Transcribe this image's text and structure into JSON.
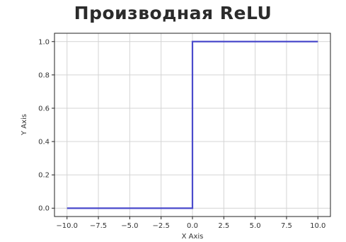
{
  "chart_data": {
    "type": "line",
    "title": "Производная ReLU",
    "xlabel": "X Axis",
    "ylabel": "Y Axis",
    "xlim": [
      -11,
      11
    ],
    "ylim": [
      -0.05,
      1.05
    ],
    "xticks": [
      -10.0,
      -7.5,
      -5.0,
      -2.5,
      0.0,
      2.5,
      5.0,
      7.5,
      10.0
    ],
    "xtick_labels": [
      "−10.0",
      "−7.5",
      "−5.0",
      "−2.5",
      "0.0",
      "2.5",
      "5.0",
      "7.5",
      "10.0"
    ],
    "yticks": [
      0.0,
      0.2,
      0.4,
      0.6,
      0.8,
      1.0
    ],
    "ytick_labels": [
      "0.0",
      "0.2",
      "0.4",
      "0.6",
      "0.8",
      "1.0"
    ],
    "grid": true,
    "legend": false,
    "series": [
      {
        "color": "#4b4bcc",
        "x": [
          -10,
          0,
          0,
          10
        ],
        "y": [
          0,
          0,
          1,
          1
        ]
      }
    ]
  }
}
